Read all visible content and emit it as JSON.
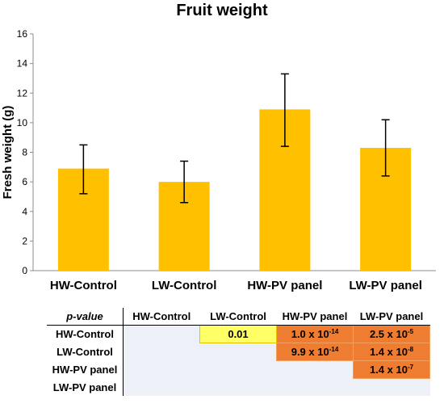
{
  "chart_data": {
    "type": "bar",
    "title": "Fruit weight",
    "ylabel": "Fresh weight (g)",
    "xlabel": "",
    "ylim": [
      0,
      16
    ],
    "yticks": [
      0,
      2,
      4,
      6,
      8,
      10,
      12,
      14,
      16
    ],
    "categories": [
      "HW-Control",
      "LW-Control",
      "HW-PV panel",
      "LW-PV panel"
    ],
    "values": [
      6.9,
      6.0,
      10.9,
      8.3
    ],
    "error_low": [
      5.2,
      4.6,
      8.4,
      6.4
    ],
    "error_high": [
      8.5,
      7.4,
      13.3,
      10.2
    ],
    "bar_color": "#ffc000",
    "grid": false
  },
  "pvalue_table": {
    "corner_label": "p-value",
    "columns": [
      "HW-Control",
      "LW-Control",
      "HW-PV panel",
      "LW-PV panel"
    ],
    "rows": [
      {
        "label": "HW-Control",
        "cells": [
          {
            "text": "",
            "exp": ""
          },
          {
            "text": "0.01",
            "exp": "",
            "highlight": "yellow"
          },
          {
            "text": "1.0 x 10",
            "exp": "-14",
            "highlight": "orange"
          },
          {
            "text": "2.5 x 10",
            "exp": "-5",
            "highlight": "orange"
          }
        ]
      },
      {
        "label": "LW-Control",
        "cells": [
          {
            "text": "",
            "exp": ""
          },
          {
            "text": "",
            "exp": ""
          },
          {
            "text": "9.9 x 10",
            "exp": "-14",
            "highlight": "orange"
          },
          {
            "text": "1.4 x 10",
            "exp": "-8",
            "highlight": "orange"
          }
        ]
      },
      {
        "label": "HW-PV panel",
        "cells": [
          {
            "text": "",
            "exp": ""
          },
          {
            "text": "",
            "exp": ""
          },
          {
            "text": "",
            "exp": ""
          },
          {
            "text": "1.4 x 10",
            "exp": "-7",
            "highlight": "orange"
          }
        ]
      },
      {
        "label": "LW-PV panel",
        "cells": [
          {
            "text": "",
            "exp": ""
          },
          {
            "text": "",
            "exp": ""
          },
          {
            "text": "",
            "exp": ""
          },
          {
            "text": "",
            "exp": ""
          }
        ]
      }
    ]
  }
}
